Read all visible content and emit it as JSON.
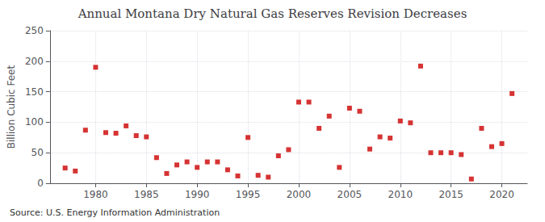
{
  "chart_data": {
    "type": "scatter",
    "title": "Annual Montana Dry Natural Gas Reserves Revision Decreases",
    "ylabel": "Billion Cubic Feet",
    "annotations": [
      "Source: U.S. Energy Information Administration"
    ],
    "x": [
      1977,
      1978,
      1979,
      1980,
      1981,
      1982,
      1983,
      1984,
      1985,
      1986,
      1987,
      1988,
      1989,
      1990,
      1991,
      1992,
      1993,
      1994,
      1995,
      1996,
      1997,
      1998,
      1999,
      2000,
      2001,
      2002,
      2003,
      2004,
      2005,
      2006,
      2007,
      2008,
      2009,
      2010,
      2011,
      2012,
      2013,
      2014,
      2015,
      2016,
      2017,
      2018,
      2019,
      2020,
      2021
    ],
    "values": [
      25,
      20,
      87,
      190,
      83,
      82,
      94,
      78,
      76,
      42,
      16,
      30,
      35,
      26,
      35,
      35,
      22,
      12,
      75,
      13,
      10,
      45,
      55,
      133,
      133,
      90,
      110,
      26,
      123,
      118,
      56,
      76,
      74,
      102,
      99,
      192,
      50,
      50,
      50,
      47,
      7,
      90,
      60,
      65,
      147
    ],
    "color": "#cc0000",
    "marker": "square",
    "xlim": [
      1975.5,
      2022.5
    ],
    "xticks": [
      1980,
      1985,
      1990,
      1995,
      2000,
      2005,
      2010,
      2015,
      2020
    ],
    "ylim": [
      0,
      250
    ],
    "yticks": [
      0,
      50,
      100,
      150,
      200,
      250
    ],
    "grid": true
  }
}
